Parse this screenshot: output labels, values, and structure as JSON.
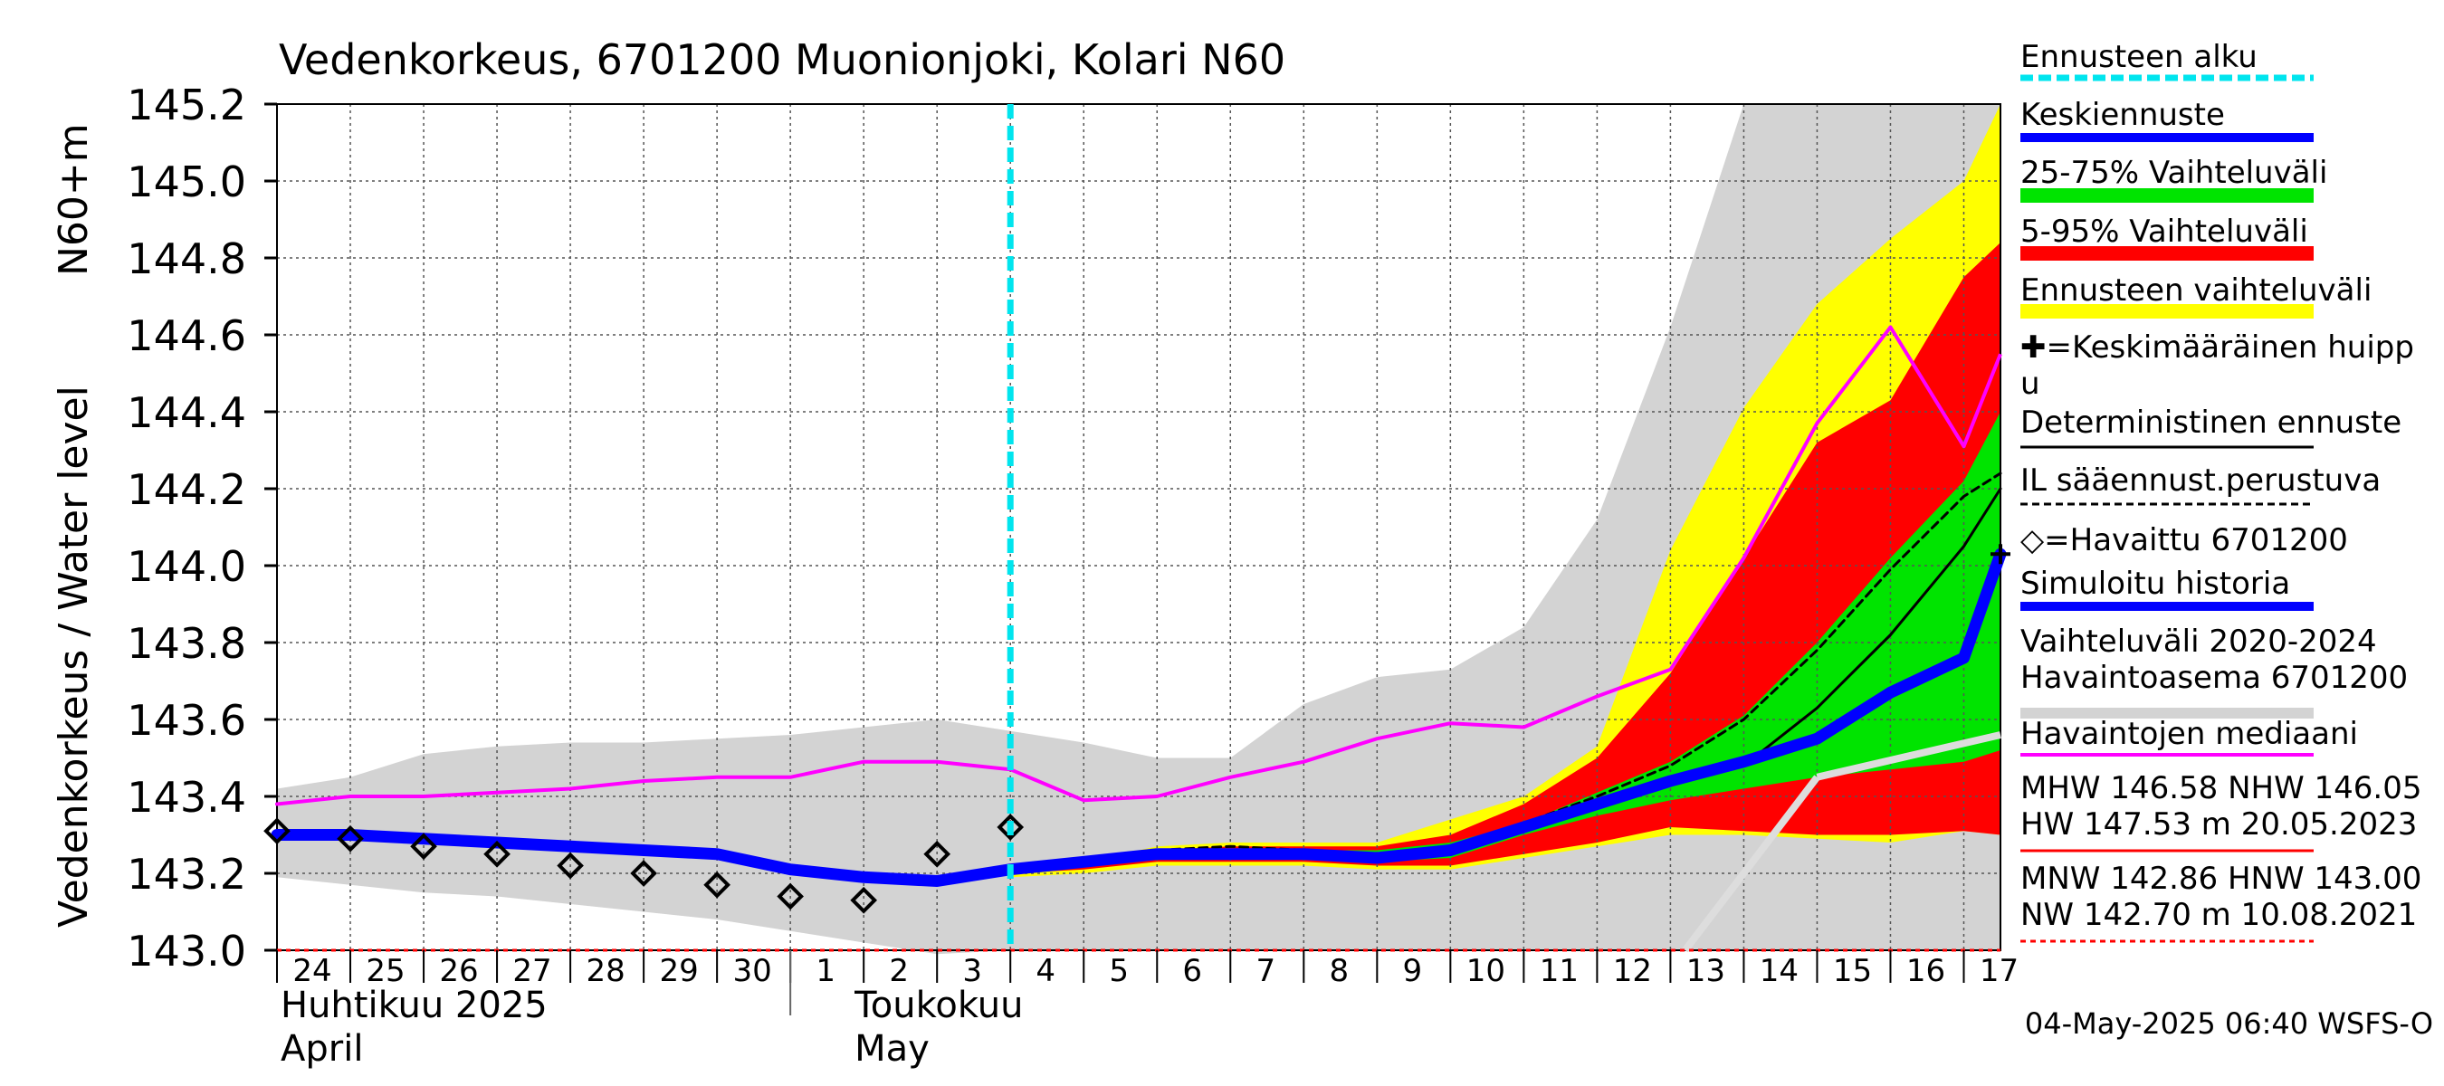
{
  "chart_data": {
    "type": "area",
    "title": "Vedenkorkeus, 6701200 Muonionjoki, Kolari N60",
    "ylabel": "Vedenkorkeus / Water level   N60+m",
    "ylim": [
      143.0,
      145.2
    ],
    "yticks": [
      143.0,
      143.2,
      143.4,
      143.6,
      143.8,
      144.0,
      144.2,
      144.4,
      144.6,
      144.8,
      145.0,
      145.2
    ],
    "x_days": [
      "24",
      "25",
      "26",
      "27",
      "28",
      "29",
      "30",
      "1",
      "2",
      "3",
      "4",
      "5",
      "6",
      "7",
      "8",
      "9",
      "10",
      "11",
      "12",
      "13",
      "14",
      "15",
      "16",
      "17"
    ],
    "month_labels": [
      {
        "fi": "Huhtikuu  2025",
        "en": "April"
      },
      {
        "fi": "Toukokuu",
        "en": "May"
      }
    ],
    "forecast_start_day_index": 10,
    "grid": true,
    "legend_position": "right",
    "legend": [
      {
        "key": "forecast_start",
        "label": "Ennusteen alku",
        "color": "#00e5ee"
      },
      {
        "key": "mean_forecast",
        "label": "Keskiennuste",
        "color": "#0000ff"
      },
      {
        "key": "band_25_75",
        "label": "25-75% Vaihteluväli",
        "color": "#00e400"
      },
      {
        "key": "band_5_95",
        "label": "5-95% Vaihteluväli",
        "color": "#ff0000"
      },
      {
        "key": "band_forecast",
        "label": "Ennusteen vaihteluväli",
        "color": "#ffff00"
      },
      {
        "key": "mean_peak",
        "label": "✚=Keskimääräinen huipp\nu",
        "color": "#000000"
      },
      {
        "key": "deterministic",
        "label": "Deterministinen ennuste",
        "color": "#000000"
      },
      {
        "key": "il_forecast",
        "label": "IL sääennust.perustuva",
        "color": "#000000"
      },
      {
        "key": "observed",
        "label": "◇=Havaittu 6701200",
        "color": "#000000"
      },
      {
        "key": "simulated",
        "label": "Simuloitu historia",
        "color": "#0000ff"
      },
      {
        "key": "history_range",
        "label": "Vaihteluväli 2020-2024\n Havaintoasema 6701200",
        "color": "#d3d3d3"
      },
      {
        "key": "median_obs",
        "label": "Havaintojen mediaani",
        "color": "#ff00ff"
      },
      {
        "key": "mhw",
        "label": "MHW 146.58 NHW 146.05\nHW 147.53 m 20.05.2023",
        "color": "#ff0000"
      },
      {
        "key": "mnw",
        "label": "MNW 142.86 HNW 143.00\nNW 142.70 m 10.08.2021",
        "color": "#ff0000"
      }
    ],
    "series": {
      "history_range": {
        "x": [
          0,
          1,
          2,
          3,
          4,
          5,
          6,
          7,
          8,
          9,
          10,
          11,
          12,
          13,
          14,
          15,
          16,
          17,
          18,
          19,
          20,
          21,
          22,
          23
        ],
        "low": [
          143.19,
          143.17,
          143.15,
          143.14,
          143.12,
          143.1,
          143.08,
          143.05,
          143.02,
          142.99,
          143.0,
          143.0,
          143.0,
          143.0,
          143.0,
          143.0,
          143.0,
          143.0,
          143.0,
          143.0,
          143.0,
          143.0,
          143.0,
          143.0
        ],
        "high": [
          143.42,
          143.45,
          143.51,
          143.53,
          143.54,
          143.54,
          143.55,
          143.56,
          143.58,
          143.6,
          143.57,
          143.54,
          143.5,
          143.5,
          143.64,
          143.71,
          143.73,
          143.84,
          144.12,
          144.62,
          145.2,
          145.2,
          145.2,
          145.2
        ]
      },
      "band_forecast": {
        "x": [
          10,
          11,
          12,
          13,
          14,
          15,
          16,
          17,
          18,
          19,
          20,
          21,
          22,
          23
        ],
        "low": [
          143.19,
          143.2,
          143.22,
          143.22,
          143.22,
          143.21,
          143.21,
          143.24,
          143.27,
          143.3,
          143.3,
          143.29,
          143.28,
          143.31
        ],
        "high": [
          143.21,
          143.23,
          143.27,
          143.28,
          143.28,
          143.28,
          143.34,
          143.4,
          143.53,
          144.04,
          144.41,
          144.68,
          144.85,
          145.0
        ]
      },
      "band_5_95": {
        "x": [
          10,
          11,
          12,
          13,
          14,
          15,
          16,
          17,
          18,
          19,
          20,
          21,
          22,
          23
        ],
        "low": [
          143.2,
          143.21,
          143.23,
          143.23,
          143.23,
          143.22,
          143.22,
          143.25,
          143.28,
          143.32,
          143.31,
          143.3,
          143.3,
          143.31
        ],
        "high": [
          143.21,
          143.22,
          143.26,
          143.27,
          143.27,
          143.27,
          143.3,
          143.38,
          143.5,
          143.72,
          144.02,
          144.32,
          144.43,
          144.75
        ]
      },
      "band_25_75": {
        "x": [
          10,
          11,
          12,
          13,
          14,
          15,
          16,
          17,
          18,
          19,
          20,
          21,
          22,
          23
        ],
        "low": [
          143.21,
          143.22,
          143.24,
          143.24,
          143.24,
          143.23,
          143.24,
          143.3,
          143.35,
          143.39,
          143.42,
          143.45,
          143.47,
          143.49
        ],
        "high": [
          143.21,
          143.22,
          143.25,
          143.26,
          143.26,
          143.26,
          143.28,
          143.33,
          143.41,
          143.49,
          143.61,
          143.8,
          144.02,
          144.22
        ]
      },
      "median_obs": {
        "x": [
          0,
          1,
          2,
          3,
          4,
          5,
          6,
          7,
          8,
          9,
          10,
          11,
          12,
          13,
          14,
          15,
          16,
          17,
          18,
          19,
          20,
          21,
          22,
          23
        ],
        "y": [
          143.38,
          143.4,
          143.4,
          143.41,
          143.42,
          143.44,
          143.45,
          143.45,
          143.49,
          143.49,
          143.47,
          143.39,
          143.4,
          143.45,
          143.49,
          143.55,
          143.59,
          143.58,
          143.66,
          143.73,
          144.02,
          144.37,
          144.62,
          144.31
        ]
      },
      "simulated": {
        "x": [
          0,
          1,
          2,
          3,
          4,
          5,
          6,
          7,
          8,
          9,
          10,
          11,
          12,
          13,
          14,
          15,
          16,
          17,
          18,
          19,
          20,
          21,
          22,
          23
        ],
        "y": [
          143.3,
          143.3,
          143.29,
          143.28,
          143.27,
          143.26,
          143.25,
          143.21,
          143.19,
          143.18,
          143.21,
          143.23,
          143.25,
          143.25,
          143.25,
          143.24,
          143.26,
          143.32,
          143.38,
          143.44,
          143.49,
          143.55,
          143.67,
          143.76
        ]
      },
      "deterministic": {
        "x": [
          10,
          11,
          12,
          13,
          14,
          15,
          16,
          17,
          18,
          19,
          20,
          21,
          22,
          23
        ],
        "y": [
          143.21,
          143.23,
          143.26,
          143.26,
          143.25,
          143.24,
          143.26,
          143.32,
          143.38,
          143.43,
          143.48,
          143.63,
          143.82,
          144.05
        ]
      },
      "il_forecast": {
        "x": [
          10,
          11,
          12,
          13,
          14,
          15,
          16,
          17,
          18,
          19,
          20,
          21,
          22,
          23
        ],
        "y": [
          143.21,
          143.23,
          143.26,
          143.27,
          143.26,
          143.25,
          143.27,
          143.33,
          143.4,
          143.48,
          143.6,
          143.78,
          143.99,
          144.18
        ]
      },
      "observed": {
        "x": [
          0,
          1,
          2,
          3,
          4,
          5,
          6,
          7,
          8,
          9,
          10
        ],
        "y": [
          143.31,
          143.29,
          143.27,
          143.25,
          143.22,
          143.2,
          143.17,
          143.14,
          143.13,
          143.25,
          143.32
        ]
      },
      "mean_peak": {
        "x": 23.5,
        "y": 144.03
      },
      "median_end": {
        "x": 23.5,
        "y": 143.56
      },
      "mean_end": {
        "x": 23.5,
        "y": 144.03
      },
      "band_end": {
        "b25_low": 143.52,
        "b25_high": 144.4,
        "b5_low": 143.3,
        "b5_high": 144.84,
        "fc_low": 143.3,
        "fc_high": 145.2,
        "det": 144.2,
        "il": 144.24,
        "hist_high": 145.2
      }
    },
    "footer": "04-May-2025 06:40 WSFS-O"
  }
}
